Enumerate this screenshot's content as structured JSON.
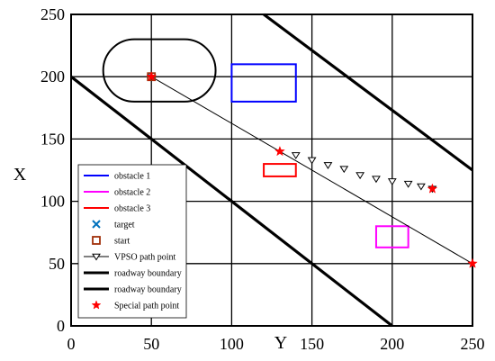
{
  "chart_data": {
    "type": "line",
    "xlabel": "Y",
    "ylabel": "X",
    "xlim": [
      0,
      250
    ],
    "ylim": [
      0,
      250
    ],
    "xticks": [
      0,
      50,
      100,
      150,
      200,
      250
    ],
    "yticks": [
      0,
      50,
      100,
      150,
      200,
      250
    ],
    "grid": true,
    "legend_position": "bottom-left",
    "legend": [
      {
        "label": "obstacle 1",
        "kind": "line",
        "color": "#0000ff"
      },
      {
        "label": "obstacle 2",
        "kind": "line",
        "color": "#ff00ff"
      },
      {
        "label": "obstacle 3",
        "kind": "line",
        "color": "#ff0000"
      },
      {
        "label": "target",
        "kind": "marker-x",
        "color": "#0072bd"
      },
      {
        "label": "start",
        "kind": "marker-square",
        "color": "#a0300a"
      },
      {
        "label": "VPSO path point",
        "kind": "line-triangle",
        "color": "#000000"
      },
      {
        "label": "roadway boundary",
        "kind": "thick-line",
        "color": "#000000"
      },
      {
        "label": "roadway boundary",
        "kind": "thick-line",
        "color": "#000000"
      },
      {
        "label": "Special path point",
        "kind": "marker-star",
        "color": "#ff0000"
      }
    ],
    "roadway_boundaries": [
      {
        "points": [
          [
            0,
            200
          ],
          [
            200,
            0
          ]
        ]
      },
      {
        "points": [
          [
            120,
            250
          ],
          [
            250,
            125
          ]
        ]
      }
    ],
    "obstacles": [
      {
        "name": "obstacle 1",
        "color": "#0000ff",
        "x": [
          100,
          140
        ],
        "y": [
          180,
          210
        ]
      },
      {
        "name": "obstacle 2",
        "color": "#ff00ff",
        "x": [
          190,
          210
        ],
        "y": [
          63,
          80
        ]
      },
      {
        "name": "obstacle 3",
        "color": "#ff0000",
        "x": [
          120,
          140
        ],
        "y": [
          120,
          130
        ]
      }
    ],
    "capsule": {
      "x": [
        20,
        90
      ],
      "y": [
        180,
        230
      ]
    },
    "start": [
      50,
      200
    ],
    "target": [
      50,
      200
    ],
    "path": [
      [
        50,
        200
      ],
      [
        130,
        140
      ],
      [
        250,
        50
      ]
    ],
    "vpso_points": [
      [
        140,
        137
      ],
      [
        150,
        133
      ],
      [
        160,
        129
      ],
      [
        170,
        126
      ],
      [
        180,
        121
      ],
      [
        190,
        118
      ],
      [
        200,
        116
      ],
      [
        210,
        114
      ],
      [
        218,
        112
      ],
      [
        225,
        110
      ]
    ],
    "special_points": [
      [
        50,
        200
      ],
      [
        130,
        140
      ],
      [
        225,
        110
      ],
      [
        250,
        50
      ]
    ]
  }
}
